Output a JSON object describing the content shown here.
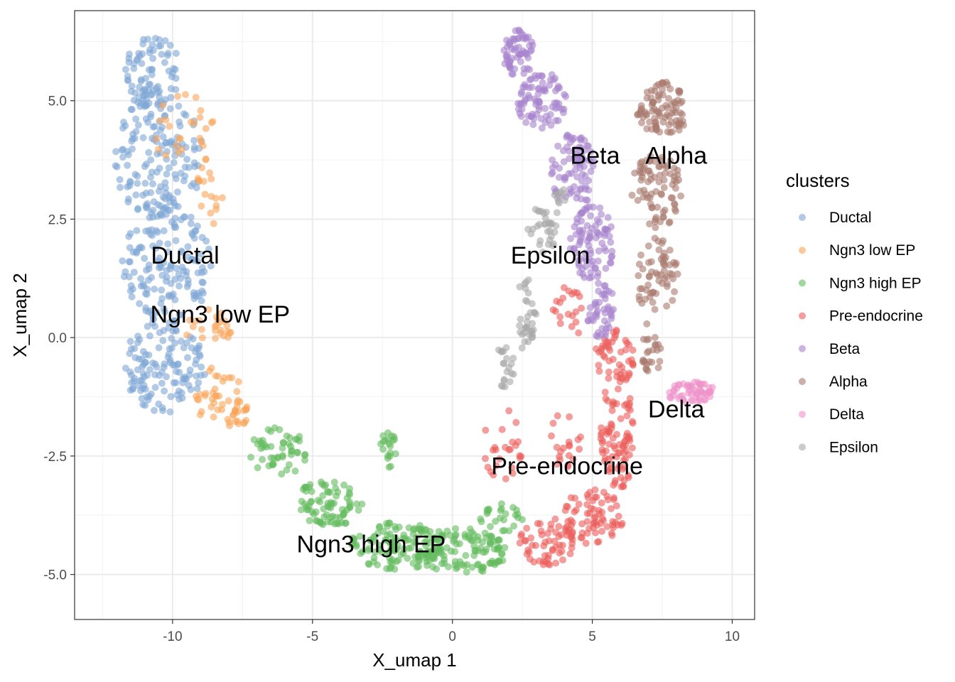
{
  "chart_data": {
    "type": "scatter",
    "title": "",
    "xlabel": "X_umap 1",
    "ylabel": "X_umap 2",
    "xlim": [
      -13.5,
      10.8
    ],
    "ylim": [
      -5.95,
      6.9
    ],
    "x_ticks": [
      -10,
      -5,
      0,
      5,
      10
    ],
    "x_tick_labels": [
      "-10",
      "-5",
      "0",
      "5",
      "10"
    ],
    "y_ticks": [
      -5,
      -2.5,
      0,
      2.5,
      5
    ],
    "y_tick_labels": [
      "-5.0",
      "-2.5",
      "0.0",
      "2.5",
      "5.0"
    ],
    "grid": true,
    "legend": {
      "title": "clusters",
      "position": "right"
    },
    "point_opacity": 0.6,
    "series": [
      {
        "name": "Ductal",
        "color": "#7FA7D6",
        "regions": [
          {
            "cx": -10.7,
            "cy": 5.6,
            "rx": 1.0,
            "ry": 0.8,
            "n": 80
          },
          {
            "cx": -10.5,
            "cy": 3.8,
            "rx": 1.6,
            "ry": 1.3,
            "n": 150
          },
          {
            "cx": -10.2,
            "cy": 1.6,
            "rx": 1.6,
            "ry": 1.3,
            "n": 150
          },
          {
            "cx": -10.3,
            "cy": -0.6,
            "rx": 1.5,
            "ry": 1.0,
            "n": 130
          }
        ]
      },
      {
        "name": "Ngn3 low EP",
        "color": "#F9A55A",
        "regions": [
          {
            "cx": -9.6,
            "cy": 4.4,
            "rx": 1.1,
            "ry": 0.8,
            "n": 25
          },
          {
            "cx": -8.7,
            "cy": 3.1,
            "rx": 0.5,
            "ry": 0.8,
            "n": 18
          },
          {
            "cx": -8.7,
            "cy": 0.2,
            "rx": 0.9,
            "ry": 0.4,
            "n": 25
          },
          {
            "cx": -8.4,
            "cy": -1.2,
            "rx": 0.9,
            "ry": 0.6,
            "n": 35
          },
          {
            "cx": -7.8,
            "cy": -1.6,
            "rx": 0.5,
            "ry": 0.4,
            "n": 20
          }
        ]
      },
      {
        "name": "Ngn3 high EP",
        "color": "#63BB5D",
        "regions": [
          {
            "cx": -6.2,
            "cy": -2.4,
            "rx": 1.1,
            "ry": 0.5,
            "n": 50
          },
          {
            "cx": -4.4,
            "cy": -3.5,
            "rx": 1.3,
            "ry": 0.5,
            "n": 80
          },
          {
            "cx": -2.0,
            "cy": -4.4,
            "rx": 1.7,
            "ry": 0.5,
            "n": 120
          },
          {
            "cx": 0.3,
            "cy": -4.5,
            "rx": 1.7,
            "ry": 0.5,
            "n": 120
          },
          {
            "cx": -2.3,
            "cy": -2.4,
            "rx": 0.3,
            "ry": 0.5,
            "n": 20
          },
          {
            "cx": 1.8,
            "cy": -3.8,
            "rx": 0.8,
            "ry": 0.3,
            "n": 25
          }
        ]
      },
      {
        "name": "Pre-endocrine",
        "color": "#EB5D5A",
        "regions": [
          {
            "cx": 3.4,
            "cy": -4.3,
            "rx": 1.0,
            "ry": 0.5,
            "n": 60
          },
          {
            "cx": 5.0,
            "cy": -3.8,
            "rx": 1.1,
            "ry": 0.6,
            "n": 70
          },
          {
            "cx": 5.9,
            "cy": -2.0,
            "rx": 0.6,
            "ry": 1.3,
            "n": 90
          },
          {
            "cx": 5.8,
            "cy": -0.4,
            "rx": 0.7,
            "ry": 0.6,
            "n": 45
          },
          {
            "cx": 4.0,
            "cy": -2.2,
            "rx": 0.7,
            "ry": 0.6,
            "n": 20
          },
          {
            "cx": 4.1,
            "cy": 0.5,
            "rx": 0.6,
            "ry": 0.6,
            "n": 20
          },
          {
            "cx": 1.8,
            "cy": -2.3,
            "rx": 0.7,
            "ry": 0.8,
            "n": 25
          }
        ]
      },
      {
        "name": "Beta",
        "color": "#A683CD",
        "regions": [
          {
            "cx": 2.4,
            "cy": 6.0,
            "rx": 0.6,
            "ry": 0.5,
            "n": 60
          },
          {
            "cx": 3.2,
            "cy": 5.0,
            "rx": 0.9,
            "ry": 0.6,
            "n": 80
          },
          {
            "cx": 4.3,
            "cy": 3.5,
            "rx": 0.8,
            "ry": 0.8,
            "n": 80
          },
          {
            "cx": 5.0,
            "cy": 2.0,
            "rx": 0.8,
            "ry": 0.8,
            "n": 90
          },
          {
            "cx": 5.3,
            "cy": 0.6,
            "rx": 0.5,
            "ry": 0.6,
            "n": 45
          }
        ]
      },
      {
        "name": "Alpha",
        "color": "#A8796E",
        "regions": [
          {
            "cx": 7.5,
            "cy": 4.8,
            "rx": 0.9,
            "ry": 0.6,
            "n": 90
          },
          {
            "cx": 7.3,
            "cy": 3.1,
            "rx": 0.9,
            "ry": 0.8,
            "n": 80
          },
          {
            "cx": 7.3,
            "cy": 1.3,
            "rx": 0.8,
            "ry": 0.8,
            "n": 60
          },
          {
            "cx": 7.1,
            "cy": -0.2,
            "rx": 0.4,
            "ry": 0.6,
            "n": 25
          }
        ]
      },
      {
        "name": "Delta",
        "color": "#EF92C9",
        "regions": [
          {
            "cx": 8.5,
            "cy": -1.15,
            "rx": 0.9,
            "ry": 0.22,
            "n": 55
          }
        ]
      },
      {
        "name": "Epsilon",
        "color": "#A9A9A9",
        "regions": [
          {
            "cx": 3.3,
            "cy": 2.3,
            "rx": 0.6,
            "ry": 0.5,
            "n": 30
          },
          {
            "cx": 2.6,
            "cy": 0.5,
            "rx": 0.4,
            "ry": 0.8,
            "n": 35
          },
          {
            "cx": 1.9,
            "cy": -0.6,
            "rx": 0.3,
            "ry": 0.6,
            "n": 20
          },
          {
            "cx": 3.8,
            "cy": 2.9,
            "rx": 0.3,
            "ry": 0.3,
            "n": 10
          }
        ]
      }
    ],
    "annotations": [
      {
        "text": "Ductal",
        "x": -9.55,
        "y": 1.7
      },
      {
        "text": "Ngn3 low EP",
        "x": -8.3,
        "y": 0.45
      },
      {
        "text": "Ngn3 high EP",
        "x": -2.9,
        "y": -4.4
      },
      {
        "text": "Pre-endocrine",
        "x": 4.1,
        "y": -2.75
      },
      {
        "text": "Epsilon",
        "x": 3.5,
        "y": 1.7
      },
      {
        "text": "Beta",
        "x": 5.1,
        "y": 3.8
      },
      {
        "text": "Alpha",
        "x": 8.0,
        "y": 3.8
      },
      {
        "text": "Delta",
        "x": 8.0,
        "y": -1.55
      }
    ]
  }
}
